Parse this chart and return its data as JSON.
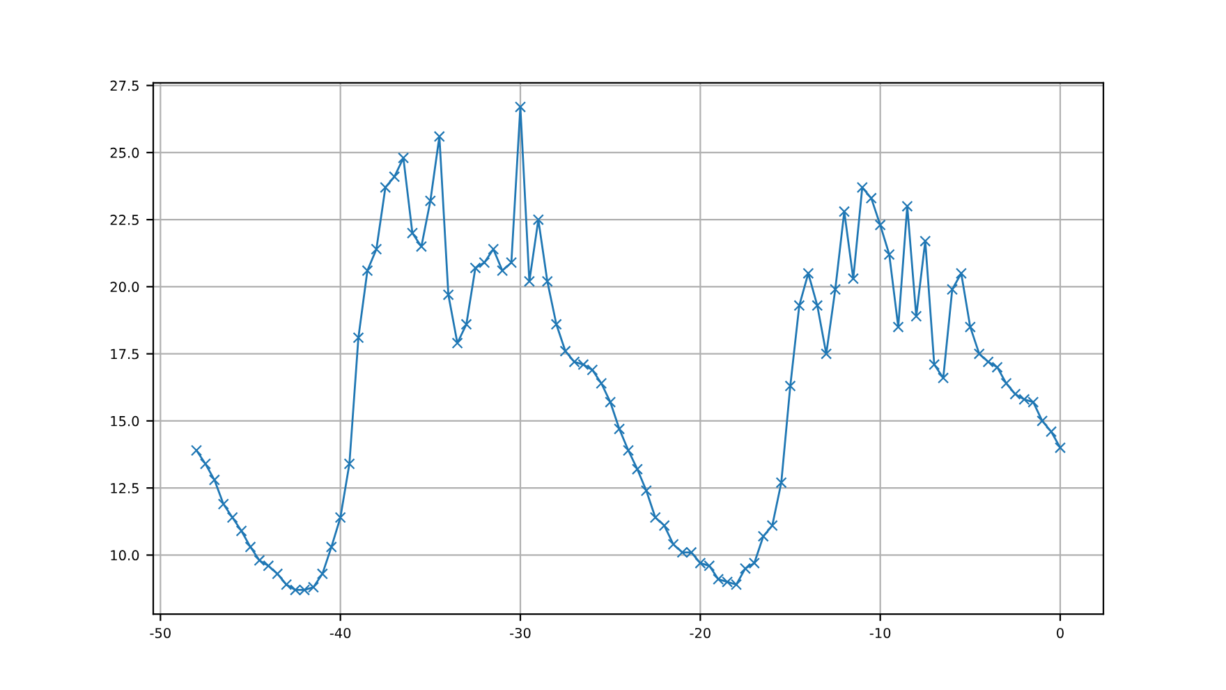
{
  "chart_data": {
    "type": "line",
    "marker": "cross",
    "line_style": "solid",
    "grid": true,
    "x": [
      -48,
      -47.5,
      -47,
      -46.5,
      -46,
      -45.5,
      -45,
      -44.5,
      -44,
      -43.5,
      -43,
      -42.5,
      -42,
      -41.5,
      -41,
      -40.5,
      -40,
      -39.5,
      -39,
      -38.5,
      -38,
      -37.5,
      -37,
      -36.5,
      -36,
      -35.5,
      -35,
      -34.5,
      -34,
      -33.5,
      -33,
      -32.5,
      -32,
      -31.5,
      -31,
      -30.5,
      -30,
      -29.5,
      -29,
      -28.5,
      -28,
      -27.5,
      -27,
      -26.5,
      -26,
      -25.5,
      -25,
      -24.5,
      -24,
      -23.5,
      -23,
      -22.5,
      -22,
      -21.5,
      -21,
      -20.5,
      -20,
      -19.5,
      -19,
      -18.5,
      -18,
      -17.5,
      -17,
      -16.5,
      -16,
      -15.5,
      -15,
      -14.5,
      -14,
      -13.5,
      -13,
      -12.5,
      -12,
      -11.5,
      -11,
      -10.5,
      -10,
      -9.5,
      -9,
      -8.5,
      -8,
      -7.5,
      -7,
      -6.5,
      -6,
      -5.5,
      -5,
      -4.5,
      -4,
      -3.5,
      -3,
      -2.5,
      -2,
      -1.5,
      -1,
      -0.5,
      0
    ],
    "series": [
      {
        "color": "#1f77b4",
        "values": [
          13.9,
          13.4,
          12.8,
          11.9,
          11.4,
          10.9,
          10.3,
          9.8,
          9.6,
          9.3,
          8.9,
          8.7,
          8.7,
          8.8,
          9.3,
          10.3,
          11.4,
          13.4,
          18.1,
          20.6,
          21.4,
          23.7,
          24.1,
          24.8,
          22.0,
          21.5,
          23.2,
          25.6,
          19.7,
          17.9,
          18.6,
          20.7,
          20.9,
          21.4,
          20.6,
          20.9,
          26.7,
          20.2,
          22.5,
          20.2,
          18.6,
          17.6,
          17.2,
          17.1,
          16.9,
          16.4,
          15.7,
          14.7,
          13.9,
          13.2,
          12.4,
          11.4,
          11.1,
          10.4,
          10.1,
          10.1,
          9.7,
          9.6,
          9.1,
          9.0,
          8.9,
          9.5,
          9.7,
          10.7,
          11.1,
          12.7,
          16.3,
          19.3,
          20.5,
          19.3,
          17.5,
          19.9,
          22.8,
          20.3,
          23.7,
          23.3,
          22.3,
          21.2,
          18.5,
          23.0,
          18.9,
          21.7,
          17.1,
          16.6,
          19.9,
          20.5,
          18.5,
          17.5,
          17.2,
          17.0,
          16.4,
          16.0,
          15.8,
          15.7,
          15.0,
          14.6,
          14.0
        ]
      }
    ],
    "xlim": [
      -50.4,
      2.4
    ],
    "ylim": [
      7.8,
      27.6
    ],
    "xticks": [
      -50,
      -40,
      -30,
      -20,
      -10,
      0
    ],
    "yticks": [
      {
        "value": 10,
        "label": "10.0"
      },
      {
        "value": 12.5,
        "label": "12.5"
      },
      {
        "value": 15,
        "label": "15.0"
      },
      {
        "value": 17.5,
        "label": "17.5"
      },
      {
        "value": 20,
        "label": "20.0"
      },
      {
        "value": 22.5,
        "label": "22.5"
      },
      {
        "value": 25,
        "label": "25.0"
      },
      {
        "value": 27.5,
        "label": "27.5"
      }
    ]
  }
}
